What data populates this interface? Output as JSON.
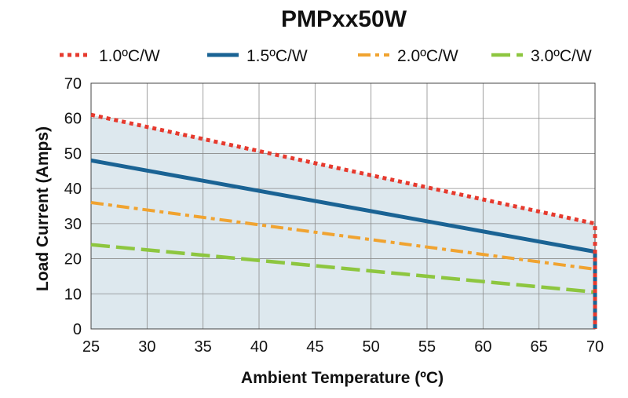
{
  "chart_data": {
    "type": "line",
    "title": "PMPxx50W",
    "xlabel": "Ambient Temperature (ºC)",
    "ylabel": "Load Current (Amps)",
    "xlim": [
      25,
      70
    ],
    "ylim": [
      0,
      70
    ],
    "xticks": [
      25,
      30,
      35,
      40,
      45,
      50,
      55,
      60,
      65,
      70
    ],
    "yticks": [
      0,
      10,
      20,
      30,
      40,
      50,
      60,
      70
    ],
    "grid": true,
    "legend_position": "top",
    "series": [
      {
        "name": "1.0ºC/W",
        "color": "#e63a2e",
        "dash": "dotted",
        "points": [
          [
            25,
            61
          ],
          [
            70,
            30
          ],
          [
            70,
            0
          ]
        ]
      },
      {
        "name": "1.5ºC/W",
        "color": "#1a6394",
        "dash": "solid",
        "points": [
          [
            25,
            48
          ],
          [
            70,
            22
          ],
          [
            70,
            0
          ]
        ]
      },
      {
        "name": "2.0ºC/W",
        "color": "#f0a330",
        "dash": "dashdot",
        "points": [
          [
            25,
            36
          ],
          [
            70,
            17
          ],
          [
            70,
            0
          ]
        ]
      },
      {
        "name": "3.0ºC/W",
        "color": "#8dc63f",
        "dash": "longdash",
        "points": [
          [
            25,
            24
          ],
          [
            70,
            10.5
          ],
          [
            70,
            0
          ]
        ]
      }
    ],
    "fill_under": {
      "series": "1.0ºC/W",
      "color": "#dde8ee"
    }
  }
}
